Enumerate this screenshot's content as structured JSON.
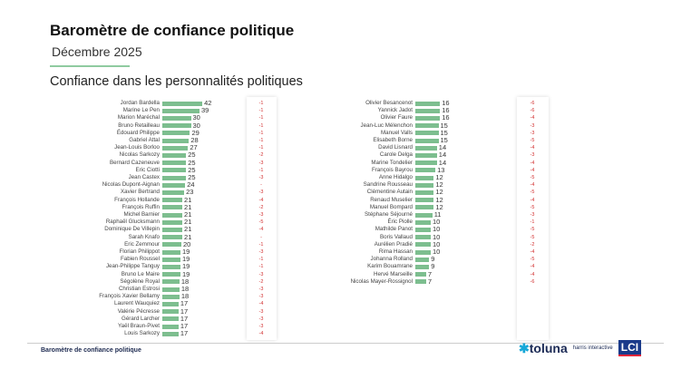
{
  "header": {
    "title": "Baromètre de confiance politique",
    "subtitle": "Décembre 2025",
    "section": "Confiance dans les personnalités politiques"
  },
  "footer": {
    "text": "Baromètre de confiance politique",
    "logos": {
      "toluna": "toluna",
      "harris": "harris interactive",
      "lci": "LCI"
    }
  },
  "colors": {
    "bar": "#7dbe8f",
    "delta": "#d23030"
  },
  "chart_data": [
    {
      "type": "bar",
      "orientation": "horizontal",
      "categories": [
        "Jordan Bardella",
        "Marine Le Pen",
        "Marion Maréchal",
        "Bruno Retailleau",
        "Édouard Philippe",
        "Gabriel Attal",
        "Jean-Louis Borloo",
        "Nicolas Sarkozy",
        "Bernard Cazeneuve",
        "Eric Ciotti",
        "Jean Castex",
        "Nicolas Dupont-Aignan",
        "Xavier Bertrand",
        "François Hollande",
        "François Ruffin",
        "Michel Barnier",
        "Raphaël Glucksmann",
        "Dominique De Villepin",
        "Sarah Knafo",
        "Eric Zemmour",
        "Florian Philippot",
        "Fabien Roussel",
        "Jean-Philippe Tanguy",
        "Bruno Le Maire",
        "Ségolène Royal",
        "Christian Estrosi",
        "François Xavier Bellamy",
        "Laurent Wauquiez",
        "Valérie Pécresse",
        "Gérard Larcher",
        "Yaël Braun-Pivet",
        "Louis Sarkozy"
      ],
      "values": [
        42,
        39,
        30,
        30,
        29,
        28,
        27,
        25,
        25,
        25,
        25,
        24,
        23,
        21,
        21,
        21,
        21,
        21,
        21,
        20,
        19,
        19,
        19,
        19,
        18,
        18,
        18,
        17,
        17,
        17,
        17,
        17
      ],
      "deltas": [
        "-1",
        "-1",
        "-1",
        "-1",
        "-1",
        "-1",
        "-1",
        "-2",
        "-3",
        "-1",
        "-3",
        "-",
        "-3",
        "-4",
        "-2",
        "-3",
        "-5",
        "-4",
        "-",
        "-1",
        "-3",
        "-1",
        "-1",
        "-3",
        "-2",
        "-3",
        "-3",
        "-4",
        "-3",
        "-3",
        "-3",
        "-4"
      ]
    },
    {
      "type": "bar",
      "orientation": "horizontal",
      "categories": [
        "Olivier Besancenot",
        "Yannick Jadot",
        "Olivier Faure",
        "Jean-Luc Mélenchon",
        "Manuel Valls",
        "Elisabeth Borne",
        "David Lisnard",
        "Carole Delga",
        "Marine Tondelier",
        "François Bayrou",
        "Anne Hidalgo",
        "Sandrine Rousseau",
        "Clémentine Autain",
        "Renaud Muselier",
        "Manuel Bompard",
        "Stéphane Séjourné",
        "Éric Piolle",
        "Mathilde Panot",
        "Boris Vallaud",
        "Aurélien Pradié",
        "Rima Hassan",
        "Johanna Rolland",
        "Karim Bouamrane",
        "Hervé Marseille",
        "Nicolas Mayer-Rossignol"
      ],
      "values": [
        16,
        16,
        16,
        15,
        15,
        15,
        14,
        14,
        14,
        13,
        12,
        12,
        12,
        12,
        12,
        11,
        10,
        10,
        10,
        10,
        10,
        9,
        9,
        7,
        7
      ],
      "deltas": [
        "-6",
        "-6",
        "-4",
        "-3",
        "-3",
        "-5",
        "-4",
        "-3",
        "-4",
        "-4",
        "-5",
        "-4",
        "-5",
        "-4",
        "-5",
        "-3",
        "-1",
        "-5",
        "-5",
        "-2",
        "-4",
        "-5",
        "-4",
        "-4",
        "-6"
      ]
    }
  ]
}
